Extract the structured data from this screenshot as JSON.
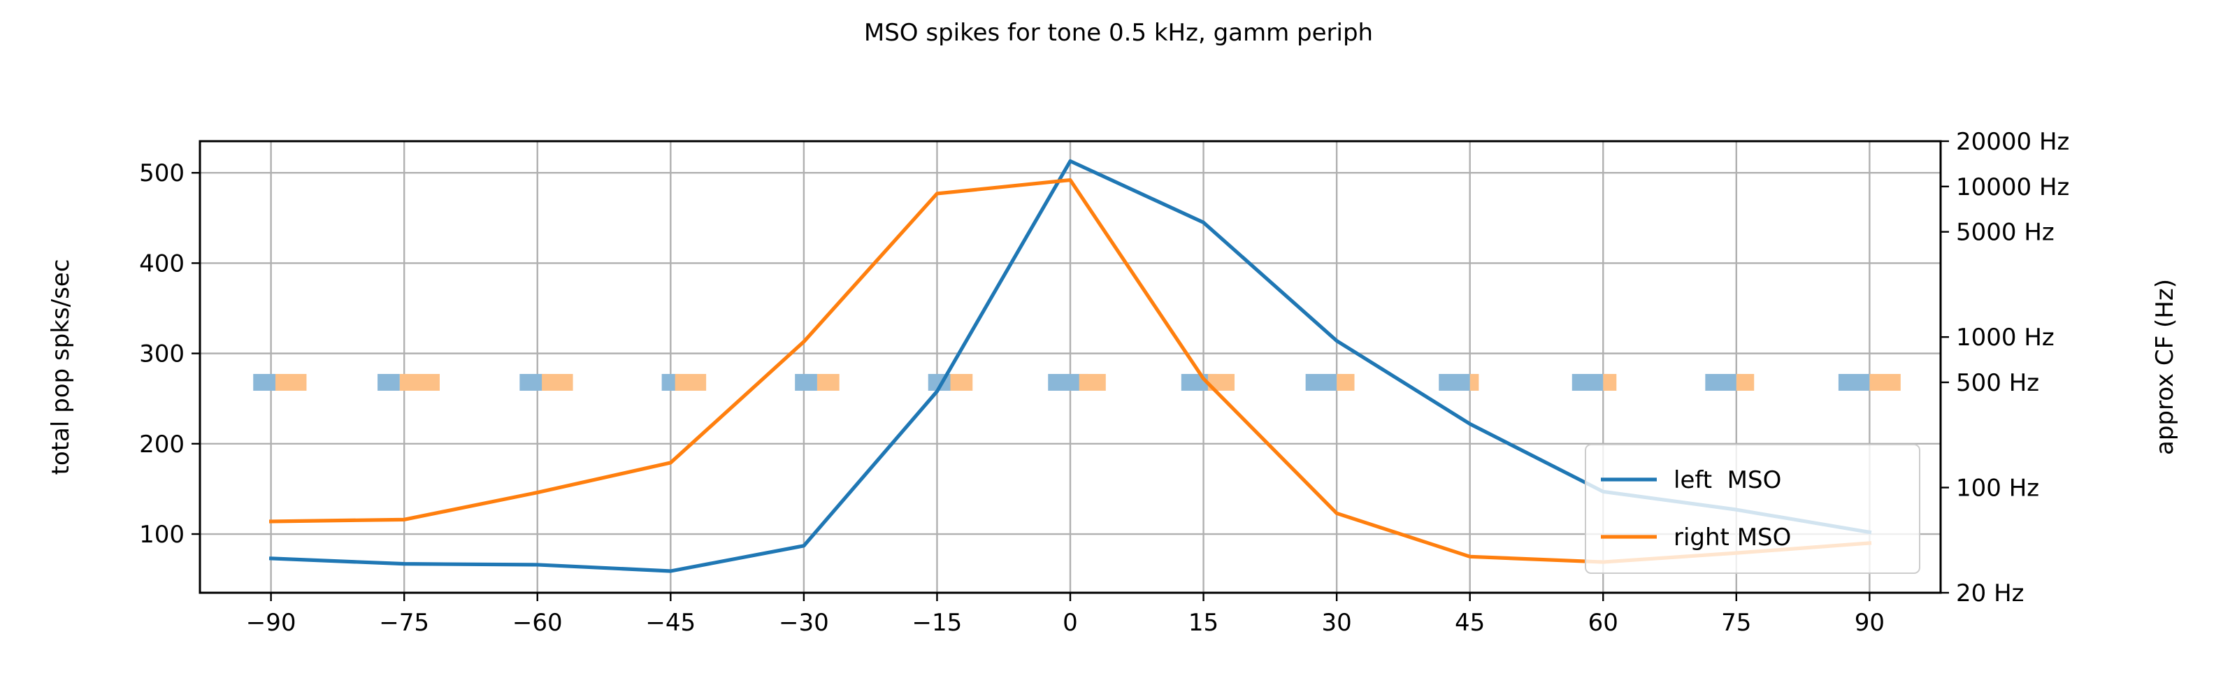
{
  "chart_data": {
    "type": "line",
    "title": "MSO spikes for tone 0.5 kHz, gamm periph",
    "ylabel": "total pop spks/sec",
    "y2label": "approx CF (Hz)",
    "xlabel": "",
    "xlim": [
      -98,
      98
    ],
    "ylim": [
      35,
      535
    ],
    "x_ticks": [
      -90,
      -75,
      -60,
      -45,
      -30,
      -15,
      0,
      15,
      30,
      45,
      60,
      75,
      90
    ],
    "x_tick_labels": [
      "−90",
      "−75",
      "−60",
      "−45",
      "−30",
      "−15",
      "0",
      "15",
      "30",
      "45",
      "60",
      "75",
      "90"
    ],
    "y_ticks": [
      100,
      200,
      300,
      400,
      500
    ],
    "y2_scale": "log",
    "y2lim": [
      20,
      20000
    ],
    "y2_ticks": [
      20,
      100,
      500,
      1000,
      5000,
      10000,
      20000
    ],
    "y2_tick_labels": [
      "20 Hz",
      "100 Hz",
      "500 Hz",
      "1000 Hz",
      "5000 Hz",
      "10000 Hz",
      "20000 Hz"
    ],
    "grid": true,
    "legend_position": "lower-right",
    "x": [
      -90,
      -75,
      -60,
      -45,
      -30,
      -15,
      0,
      15,
      30,
      45,
      60,
      75,
      90
    ],
    "series": [
      {
        "name": "left  MSO",
        "color": "#1f77b4",
        "values": [
          73,
          67,
          66,
          59,
          87,
          258,
          513,
          445,
          314,
          222,
          147,
          127,
          102
        ]
      },
      {
        "name": "right MSO",
        "color": "#ff7f0e",
        "values": [
          114,
          116,
          146,
          179,
          313,
          477,
          492,
          272,
          123,
          75,
          69,
          79,
          90
        ]
      }
    ],
    "raster": {
      "y2_center": 500,
      "left_color": "#8ab7d8",
      "right_color": "#fdc086",
      "groups": [
        {
          "x": -90,
          "left": [
            -92,
            -89.5
          ],
          "right": [
            -89.5,
            -86
          ]
        },
        {
          "x": -75,
          "left": [
            -78,
            -75.5
          ],
          "right": [
            -75.5,
            -71
          ]
        },
        {
          "x": -60,
          "left": [
            -62,
            -59
          ],
          "right": [
            -59.5,
            -56
          ]
        },
        {
          "x": -45,
          "left": [
            -46,
            -44
          ],
          "right": [
            -44.5,
            -41
          ]
        },
        {
          "x": -30,
          "left": [
            -31,
            -28.5
          ],
          "right": [
            -28.5,
            -26
          ]
        },
        {
          "x": -15,
          "left": [
            -16,
            -13.5
          ],
          "right": [
            -13.5,
            -11
          ]
        },
        {
          "x": 0,
          "left": [
            -2.5,
            2
          ],
          "right": [
            1,
            4
          ]
        },
        {
          "x": 15,
          "left": [
            12.5,
            16.5
          ],
          "right": [
            15.5,
            18.5
          ]
        },
        {
          "x": 30,
          "left": [
            26.5,
            30.5
          ],
          "right": [
            30,
            32
          ]
        },
        {
          "x": 45,
          "left": [
            41.5,
            45.5
          ],
          "right": [
            45,
            46
          ]
        },
        {
          "x": 60,
          "left": [
            56.5,
            60.5
          ],
          "right": [
            60,
            61.5
          ]
        },
        {
          "x": 75,
          "left": [
            71.5,
            75.5
          ],
          "right": [
            75,
            77
          ]
        },
        {
          "x": 90,
          "left": [
            86.5,
            90.5
          ],
          "right": [
            90,
            93.5
          ]
        }
      ]
    }
  }
}
